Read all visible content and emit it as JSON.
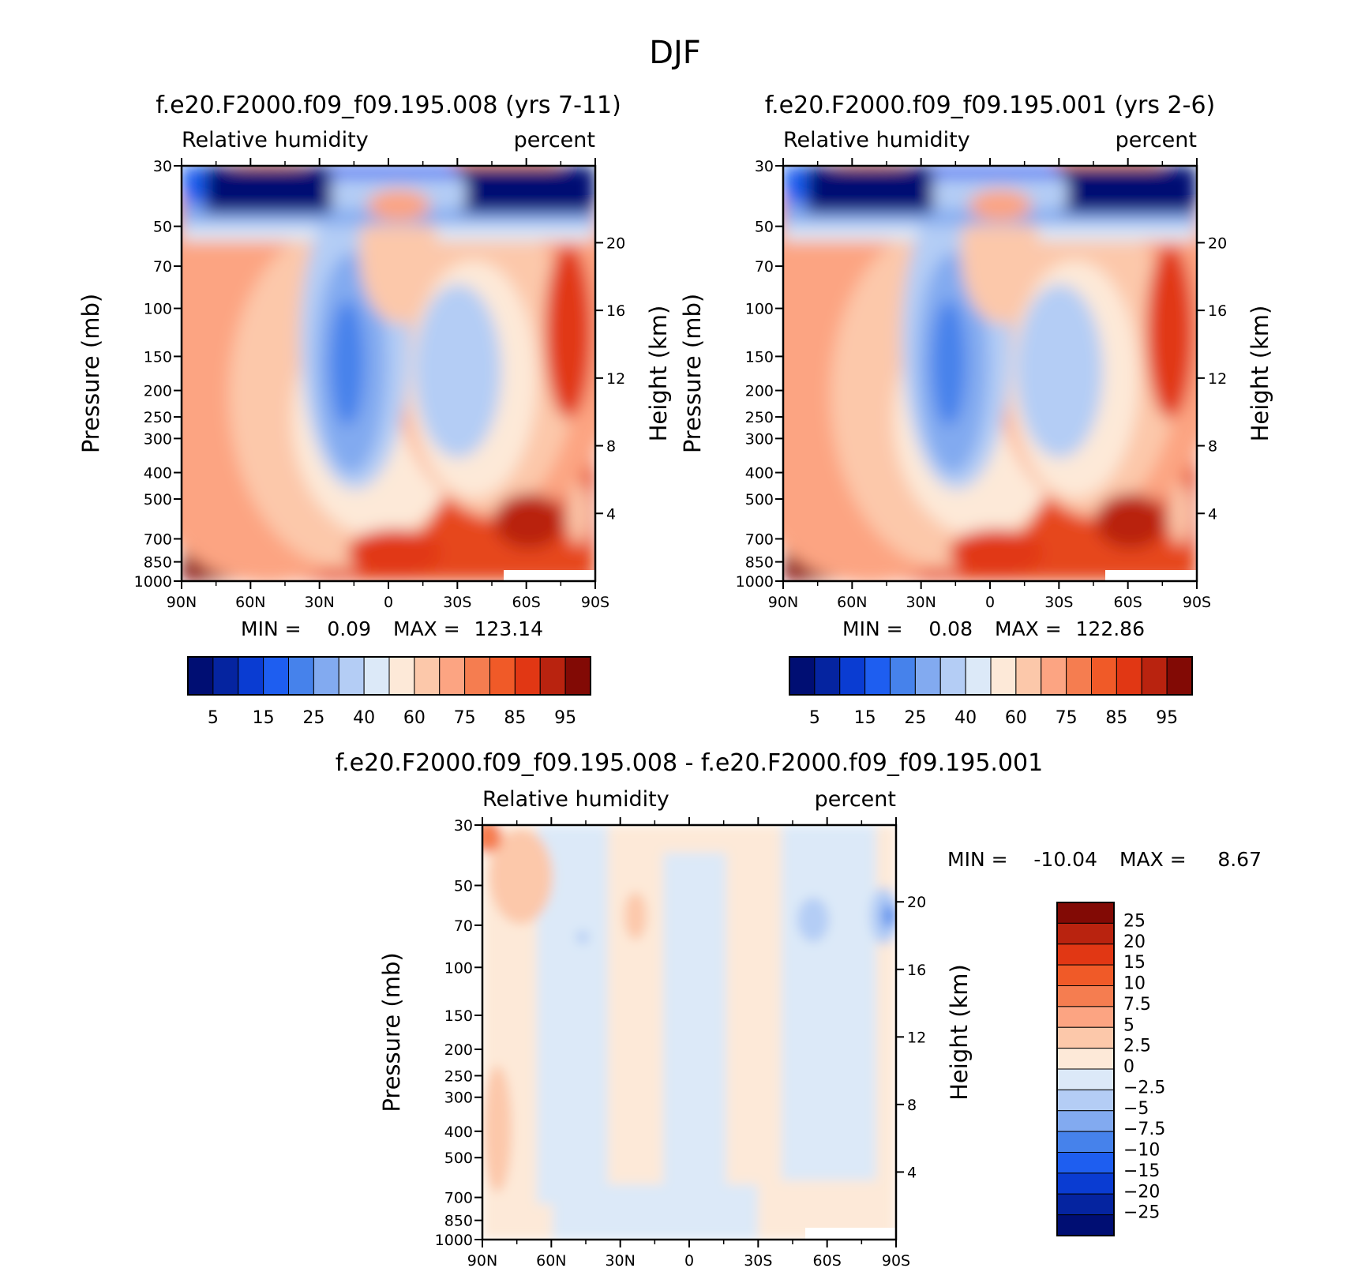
{
  "figure_title": "DJF",
  "colors": {
    "rh_scale": [
      "#000e73",
      "#0524a0",
      "#0a3cd2",
      "#1e5ef0",
      "#4682eb",
      "#82aaf0",
      "#b4cdf5",
      "#dce9f8",
      "#fde9d8",
      "#fcc8aa",
      "#fca482",
      "#f57d50",
      "#f05a28",
      "#e13714",
      "#b9230f",
      "#820a05"
    ],
    "diff_scale": [
      "#000e73",
      "#0524a0",
      "#0a3cd2",
      "#1e5ef0",
      "#4682eb",
      "#82aaf0",
      "#b4cdf5",
      "#dce9f8",
      "#fde9d8",
      "#fcc8aa",
      "#fca482",
      "#f57d50",
      "#f05a28",
      "#e13714",
      "#b9230f",
      "#820a05"
    ]
  },
  "chart_data": [
    {
      "type": "heatmap",
      "panel": "top-left",
      "title": "f.e20.F2000.f09_f09.195.008 (yrs 7-11)",
      "variable": "Relative humidity",
      "units": "percent",
      "ylabel": "Pressure (mb)",
      "y2label": "Height (km)",
      "x_ticks": [
        "90N",
        "60N",
        "30N",
        "0",
        "30S",
        "60S",
        "90S"
      ],
      "y_ticks": [
        30,
        50,
        70,
        100,
        150,
        200,
        250,
        300,
        400,
        500,
        700,
        850,
        1000
      ],
      "y_tick_labels": [
        "30",
        "50",
        "70",
        "100",
        "150",
        "200",
        "250",
        "300",
        "400",
        "500",
        "700",
        "850",
        "1000"
      ],
      "height_ticks": [
        20,
        16,
        12,
        8,
        4
      ],
      "height_tick_labels": [
        "20",
        "16",
        "12",
        "8",
        "4"
      ],
      "min_label": "MIN =",
      "min_value": "0.09",
      "max_label": "MAX =",
      "max_value": "123.14",
      "levels": [
        5,
        10,
        15,
        20,
        25,
        30,
        40,
        50,
        60,
        70,
        75,
        80,
        85,
        90,
        95
      ],
      "colorbar_labels": [
        "5",
        "15",
        "25",
        "40",
        "60",
        "75",
        "85",
        "95"
      ],
      "colorbar_orientation": "horizontal"
    },
    {
      "type": "heatmap",
      "panel": "top-right",
      "title": "f.e20.F2000.f09_f09.195.001 (yrs 2-6)",
      "variable": "Relative humidity",
      "units": "percent",
      "ylabel": "Pressure (mb)",
      "y2label": "Height (km)",
      "x_ticks": [
        "90N",
        "60N",
        "30N",
        "0",
        "30S",
        "60S",
        "90S"
      ],
      "y_ticks": [
        30,
        50,
        70,
        100,
        150,
        200,
        250,
        300,
        400,
        500,
        700,
        850,
        1000
      ],
      "y_tick_labels": [
        "30",
        "50",
        "70",
        "100",
        "150",
        "200",
        "250",
        "300",
        "400",
        "500",
        "700",
        "850",
        "1000"
      ],
      "height_ticks": [
        20,
        16,
        12,
        8,
        4
      ],
      "height_tick_labels": [
        "20",
        "16",
        "12",
        "8",
        "4"
      ],
      "min_label": "MIN =",
      "min_value": "0.08",
      "max_label": "MAX =",
      "max_value": "122.86",
      "levels": [
        5,
        10,
        15,
        20,
        25,
        30,
        40,
        50,
        60,
        70,
        75,
        80,
        85,
        90,
        95
      ],
      "colorbar_labels": [
        "5",
        "15",
        "25",
        "40",
        "60",
        "75",
        "85",
        "95"
      ],
      "colorbar_orientation": "horizontal"
    },
    {
      "type": "heatmap",
      "panel": "bottom",
      "title": "f.e20.F2000.f09_f09.195.008 - f.e20.F2000.f09_f09.195.001",
      "variable": "Relative humidity",
      "units": "percent",
      "ylabel": "Pressure (mb)",
      "y2label": "Height (km)",
      "x_ticks": [
        "90N",
        "60N",
        "30N",
        "0",
        "30S",
        "60S",
        "90S"
      ],
      "y_ticks": [
        30,
        50,
        70,
        100,
        150,
        200,
        250,
        300,
        400,
        500,
        700,
        850,
        1000
      ],
      "y_tick_labels": [
        "30",
        "50",
        "70",
        "100",
        "150",
        "200",
        "250",
        "300",
        "400",
        "500",
        "700",
        "850",
        "1000"
      ],
      "height_ticks": [
        20,
        16,
        12,
        8,
        4
      ],
      "height_tick_labels": [
        "20",
        "16",
        "12",
        "8",
        "4"
      ],
      "min_label": "MIN =",
      "min_value": "-10.04",
      "max_label": "MAX =",
      "max_value": "8.67",
      "levels": [
        25,
        20,
        15,
        10,
        7.5,
        5,
        2.5,
        0,
        -2.5,
        -5,
        -7.5,
        -10,
        -15,
        -20,
        -25
      ],
      "colorbar_labels": [
        "25",
        "20",
        "15",
        "10",
        "7.5",
        "5",
        "2.5",
        "0",
        "−2.5",
        "−5",
        "−7.5",
        "−10",
        "−15",
        "−20",
        "−25"
      ],
      "colorbar_orientation": "vertical"
    }
  ]
}
